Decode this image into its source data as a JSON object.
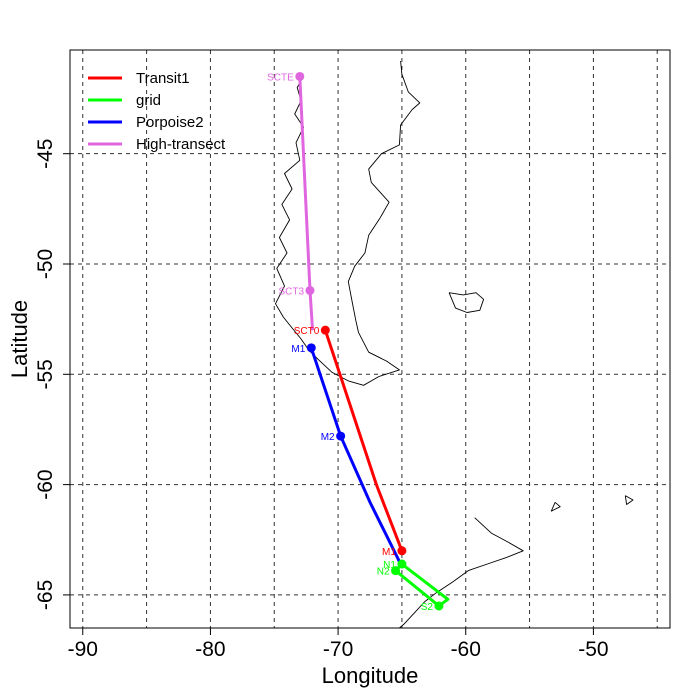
{
  "map": {
    "xlabel": "Longitude",
    "ylabel": "Latitude",
    "xlim": [
      -91,
      -44
    ],
    "ylim": [
      -66.5,
      -40.3
    ],
    "x_ticks": [
      -90,
      -80,
      -70,
      -60,
      -50
    ],
    "y_ticks": [
      -45,
      -50,
      -55,
      -60,
      -65
    ],
    "x_grid": [
      -90,
      -85,
      -80,
      -75,
      -70,
      -65,
      -60,
      -55,
      -50,
      -45
    ],
    "y_grid": [
      -45,
      -50,
      -55,
      -60,
      -65
    ],
    "grid": "dashed"
  },
  "legend": {
    "placement": "top-left",
    "entries": [
      {
        "label": "Transit1",
        "color": "#ff0000"
      },
      {
        "label": "grid",
        "color": "#00ff00"
      },
      {
        "label": "Porpoise2",
        "color": "#0000ff"
      },
      {
        "label": "High-transect",
        "color": "#e066e0"
      }
    ]
  },
  "routes": [
    {
      "name": "Transit1",
      "color": "#ff0000",
      "points": [
        {
          "label": "SCT0",
          "lon": -71.0,
          "lat": -53.0
        },
        {
          "label": "",
          "lon": -69.0,
          "lat": -56.5
        },
        {
          "label": "",
          "lon": -67.0,
          "lat": -60.0
        },
        {
          "label": "M1",
          "lon": -65.0,
          "lat": -63.0
        }
      ]
    },
    {
      "name": "Porpoise2",
      "color": "#0000ff",
      "points": [
        {
          "label": "M1",
          "lon": -72.1,
          "lat": -53.8
        },
        {
          "label": "M2",
          "lon": -69.8,
          "lat": -57.8
        },
        {
          "label": "",
          "lon": -67.5,
          "lat": -60.8
        },
        {
          "label": "",
          "lon": -65.1,
          "lat": -63.6
        }
      ]
    },
    {
      "name": "grid",
      "color": "#00ff00",
      "points": [
        {
          "label": "N1",
          "lon": -65.0,
          "lat": -63.6
        },
        {
          "label": "",
          "lon": -61.4,
          "lat": -65.2
        },
        {
          "label": "S2",
          "lon": -62.1,
          "lat": -65.5
        },
        {
          "label": "N2",
          "lon": -65.5,
          "lat": -63.9
        },
        {
          "label": "",
          "lon": -65.0,
          "lat": -63.6
        }
      ]
    },
    {
      "name": "High-transect",
      "color": "#e066e0",
      "points": [
        {
          "label": "SCTE",
          "lon": -73.0,
          "lat": -41.5
        },
        {
          "label": "SCT3",
          "lon": -72.2,
          "lat": -51.2
        },
        {
          "label": "",
          "lon": -72.0,
          "lat": -53.0
        }
      ]
    }
  ],
  "coastlines": [
    [
      [
        -72.8,
        -41.6
      ],
      [
        -73.2,
        -42.0
      ],
      [
        -72.9,
        -42.6
      ],
      [
        -73.4,
        -43.2
      ],
      [
        -72.7,
        -43.8
      ],
      [
        -73.3,
        -44.5
      ],
      [
        -73.0,
        -45.3
      ],
      [
        -74.2,
        -45.9
      ],
      [
        -73.6,
        -46.6
      ],
      [
        -74.4,
        -47.3
      ],
      [
        -73.8,
        -48.0
      ],
      [
        -74.6,
        -48.8
      ],
      [
        -74.0,
        -49.5
      ],
      [
        -74.8,
        -50.2
      ],
      [
        -74.2,
        -51.0
      ],
      [
        -74.9,
        -51.8
      ],
      [
        -74.3,
        -52.4
      ],
      [
        -73.6,
        -52.9
      ],
      [
        -72.9,
        -53.4
      ],
      [
        -72.3,
        -53.9
      ],
      [
        -71.6,
        -54.3
      ],
      [
        -70.5,
        -54.9
      ],
      [
        -69.2,
        -55.3
      ],
      [
        -68.0,
        -55.5
      ],
      [
        -66.8,
        -55.1
      ],
      [
        -65.2,
        -54.8
      ],
      [
        -66.2,
        -54.4
      ],
      [
        -67.6,
        -54.0
      ],
      [
        -68.4,
        -53.1
      ],
      [
        -68.6,
        -52.6
      ]
    ],
    [
      [
        -68.6,
        -52.6
      ],
      [
        -68.9,
        -51.7
      ],
      [
        -69.2,
        -50.8
      ],
      [
        -68.7,
        -50.1
      ],
      [
        -67.9,
        -49.5
      ],
      [
        -67.6,
        -48.7
      ],
      [
        -66.7,
        -47.9
      ],
      [
        -66.0,
        -47.2
      ],
      [
        -67.4,
        -46.3
      ],
      [
        -67.6,
        -45.7
      ],
      [
        -66.6,
        -45.0
      ],
      [
        -65.2,
        -44.6
      ],
      [
        -65.1,
        -43.7
      ],
      [
        -64.2,
        -43.0
      ],
      [
        -63.6,
        -42.7
      ],
      [
        -64.5,
        -42.2
      ],
      [
        -65.0,
        -41.4
      ],
      [
        -65.1,
        -40.8
      ]
    ],
    [
      [
        -61.3,
        -51.3
      ],
      [
        -60.2,
        -51.4
      ],
      [
        -59.2,
        -51.3
      ],
      [
        -58.6,
        -51.6
      ],
      [
        -58.9,
        -52.1
      ],
      [
        -59.9,
        -52.2
      ],
      [
        -60.8,
        -52.0
      ],
      [
        -61.3,
        -51.3
      ]
    ],
    [
      [
        -59.3,
        -61.5
      ],
      [
        -58.0,
        -62.2
      ],
      [
        -56.7,
        -62.6
      ],
      [
        -55.5,
        -63.0
      ],
      [
        -56.8,
        -63.3
      ],
      [
        -58.3,
        -63.6
      ],
      [
        -59.8,
        -63.9
      ],
      [
        -61.0,
        -64.4
      ],
      [
        -62.3,
        -64.9
      ],
      [
        -63.2,
        -65.3
      ],
      [
        -64.0,
        -65.8
      ],
      [
        -64.8,
        -66.3
      ],
      [
        -65.2,
        -66.5
      ]
    ],
    [
      [
        -53.0,
        -60.8
      ],
      [
        -52.6,
        -61.0
      ],
      [
        -53.3,
        -61.2
      ],
      [
        -53.0,
        -60.8
      ]
    ],
    [
      [
        -47.5,
        -60.5
      ],
      [
        -46.9,
        -60.7
      ],
      [
        -47.4,
        -60.9
      ],
      [
        -47.5,
        -60.5
      ]
    ]
  ]
}
